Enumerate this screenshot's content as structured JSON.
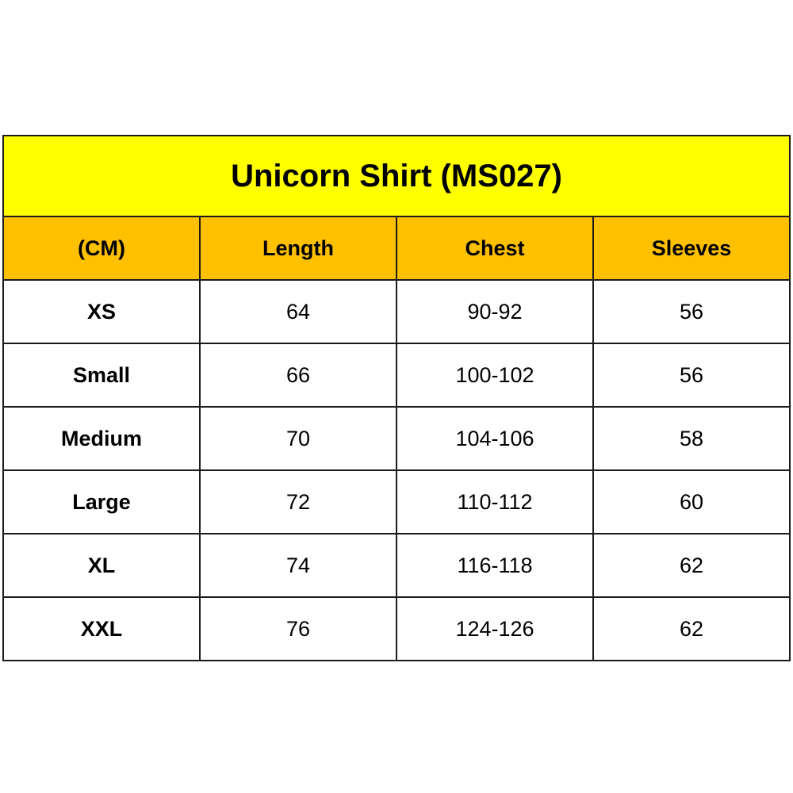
{
  "colors": {
    "title_bg": "#FFFF00",
    "header_bg": "#FFC000"
  },
  "title": "Unicorn Shirt (MS027)",
  "headers": [
    "(CM)",
    "Length",
    "Chest",
    "Sleeves"
  ],
  "rows": [
    [
      "XS",
      "64",
      "90-92",
      "56"
    ],
    [
      "Small",
      "66",
      "100-102",
      "56"
    ],
    [
      "Medium",
      "70",
      "104-106",
      "58"
    ],
    [
      "Large",
      "72",
      "110-112",
      "60"
    ],
    [
      "XL",
      "74",
      "116-118",
      "62"
    ],
    [
      "XXL",
      "76",
      "124-126",
      "62"
    ]
  ]
}
